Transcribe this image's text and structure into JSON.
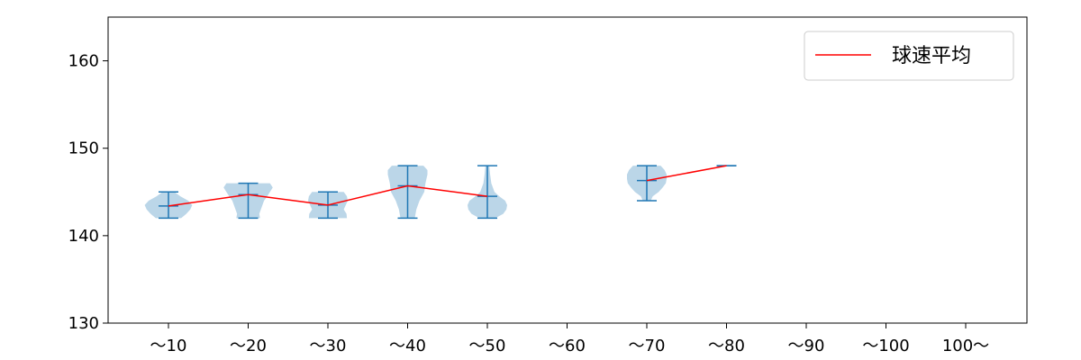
{
  "chart_data": {
    "type": "violin",
    "categories": [
      "〜10",
      "〜20",
      "〜30",
      "〜40",
      "〜50",
      "〜60",
      "〜70",
      "〜80",
      "〜90",
      "〜100",
      "100〜"
    ],
    "ylim": [
      130,
      165
    ],
    "yticks": [
      130,
      140,
      150,
      160
    ],
    "grid": false,
    "legend": {
      "placement": "top-right",
      "entries": [
        {
          "label": "球速平均",
          "color": "#ff0000"
        }
      ]
    },
    "violins": [
      {
        "category": "〜10",
        "min": 142,
        "max": 145,
        "mean": 143.4,
        "profile": [
          [
            142,
            0.32
          ],
          [
            142.5,
            0.45
          ],
          [
            143,
            0.55
          ],
          [
            143.5,
            0.6
          ],
          [
            144,
            0.5
          ],
          [
            144.5,
            0.3
          ],
          [
            145,
            0.15
          ]
        ]
      },
      {
        "category": "〜20",
        "min": 142,
        "max": 146,
        "mean": 144.7,
        "profile": [
          [
            142,
            0.3
          ],
          [
            142.5,
            0.28
          ],
          [
            143,
            0.32
          ],
          [
            143.5,
            0.36
          ],
          [
            144,
            0.4
          ],
          [
            144.5,
            0.48
          ],
          [
            145,
            0.55
          ],
          [
            145.5,
            0.62
          ],
          [
            146,
            0.55
          ]
        ]
      },
      {
        "category": "〜30",
        "min": 142,
        "max": 145,
        "mean": 143.5,
        "profile": [
          [
            142,
            0.48
          ],
          [
            142.5,
            0.47
          ],
          [
            143,
            0.4
          ],
          [
            143.5,
            0.45
          ],
          [
            144,
            0.5
          ],
          [
            144.5,
            0.48
          ],
          [
            145,
            0.4
          ]
        ]
      },
      {
        "category": "〜40",
        "min": 142,
        "max": 148,
        "mean": 145.7,
        "profile": [
          [
            142,
            0.18
          ],
          [
            142.5,
            0.2
          ],
          [
            143,
            0.22
          ],
          [
            144,
            0.3
          ],
          [
            145,
            0.42
          ],
          [
            146,
            0.45
          ],
          [
            147,
            0.5
          ],
          [
            147.5,
            0.5
          ],
          [
            148,
            0.4
          ]
        ]
      },
      {
        "category": "〜50",
        "min": 142,
        "max": 148,
        "mean": 144.5,
        "profile": [
          [
            142,
            0.2
          ],
          [
            142.5,
            0.4
          ],
          [
            143,
            0.48
          ],
          [
            143.5,
            0.5
          ],
          [
            144,
            0.45
          ],
          [
            144.5,
            0.3
          ],
          [
            145,
            0.18
          ],
          [
            146,
            0.1
          ],
          [
            147,
            0.07
          ],
          [
            148,
            0.05
          ]
        ]
      },
      {
        "category": "〜70",
        "min": 144,
        "max": 148,
        "mean": 146.3,
        "profile": [
          [
            144,
            0.1
          ],
          [
            144.5,
            0.15
          ],
          [
            145,
            0.3
          ],
          [
            145.5,
            0.4
          ],
          [
            146,
            0.48
          ],
          [
            146.5,
            0.5
          ],
          [
            147,
            0.5
          ],
          [
            147.5,
            0.45
          ],
          [
            148,
            0.35
          ]
        ]
      },
      {
        "category": "〜80",
        "min": 148,
        "max": 148,
        "mean": 148.0,
        "profile": []
      }
    ],
    "series": [
      {
        "categories": [
          "〜10",
          "〜20",
          "〜30",
          "〜40",
          "〜50"
        ],
        "values": [
          143.4,
          144.7,
          143.5,
          145.7,
          144.5
        ]
      },
      {
        "categories": [
          "〜70",
          "〜80"
        ],
        "values": [
          146.3,
          148.0
        ]
      }
    ]
  }
}
